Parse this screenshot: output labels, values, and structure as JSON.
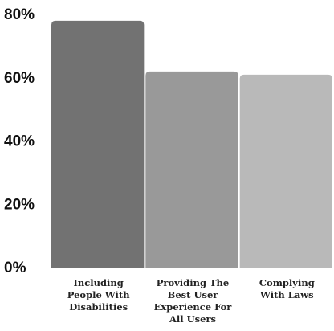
{
  "chart_data": {
    "type": "bar",
    "categories": [
      [
        "Including",
        "People With",
        "Disabilities"
      ],
      [
        "Providing The",
        "Best User",
        "Experience For",
        "All Users"
      ],
      [
        "Complying",
        "With Laws"
      ]
    ],
    "values": [
      78,
      62,
      61
    ],
    "colors": [
      "#727272",
      "#999999",
      "#b9b9b9"
    ],
    "yticks": [
      "0%",
      "20%",
      "40%",
      "60%",
      "80%"
    ],
    "ylim": [
      0,
      80
    ],
    "grid": false,
    "legend": "none"
  }
}
